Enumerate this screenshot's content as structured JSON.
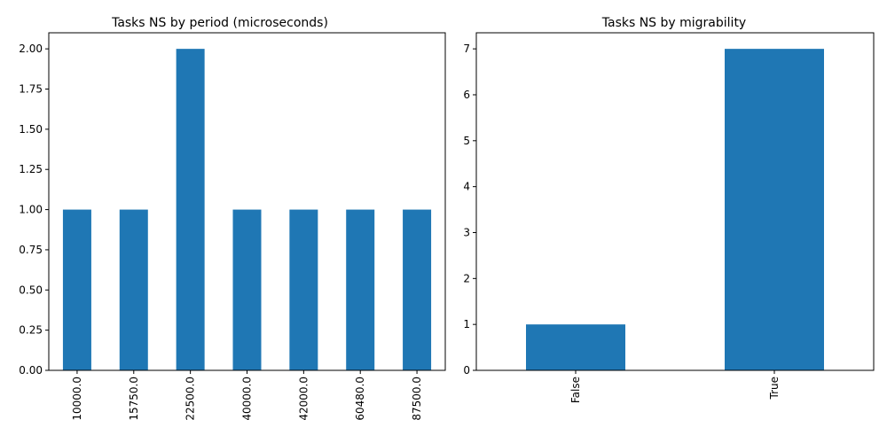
{
  "chart_data": [
    {
      "type": "bar",
      "title": "Tasks NS by period (microseconds)",
      "xlabel": "",
      "ylabel": "",
      "categories": [
        "10000.0",
        "15750.0",
        "22500.0",
        "40000.0",
        "42000.0",
        "60480.0",
        "87500.0"
      ],
      "values": [
        1,
        1,
        2,
        1,
        1,
        1,
        1
      ],
      "ylim": [
        0,
        2.1
      ],
      "yticks": [
        0,
        0.25,
        0.5,
        0.75,
        1,
        1.25,
        1.5,
        1.75,
        2
      ],
      "ytick_labels": [
        "0.00",
        "0.25",
        "0.50",
        "0.75",
        "1.00",
        "1.25",
        "1.50",
        "1.75",
        "2.00"
      ],
      "grid": false,
      "bar_color": "#1f77b4"
    },
    {
      "type": "bar",
      "title": "Tasks NS by migrability",
      "xlabel": "",
      "ylabel": "",
      "categories": [
        "False",
        "True"
      ],
      "values": [
        1,
        7
      ],
      "ylim": [
        0,
        7.35
      ],
      "yticks": [
        0,
        1,
        2,
        3,
        4,
        5,
        6,
        7
      ],
      "ytick_labels": [
        "0",
        "1",
        "2",
        "3",
        "4",
        "5",
        "6",
        "7"
      ],
      "grid": false,
      "bar_color": "#1f77b4"
    }
  ]
}
